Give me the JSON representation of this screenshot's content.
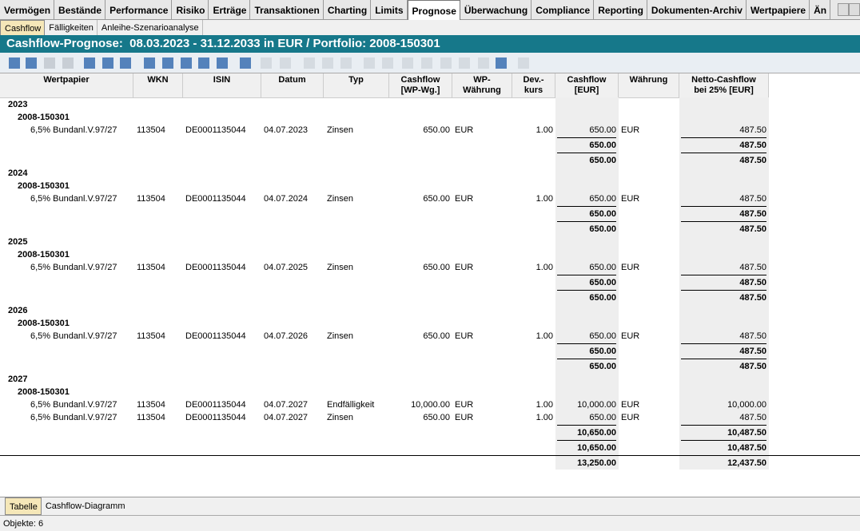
{
  "tabs": [
    "Vermögen",
    "Bestände",
    "Performance",
    "Risiko",
    "Erträge",
    "Transaktionen",
    "Charting",
    "Limits",
    "Prognose",
    "Überwachung",
    "Compliance",
    "Reporting",
    "Dokumenten-Archiv",
    "Wertpapiere",
    "Än"
  ],
  "subtabs": [
    "Cashflow",
    "Fälligkeiten",
    "Anleihe-Szenarioanalyse"
  ],
  "title": "Cashflow-Prognose:  08.03.2023 - 31.12.2033 in EUR / Portfolio: 2008-150301",
  "columns": [
    [
      "Wertpapier"
    ],
    [
      "WKN"
    ],
    [
      "ISIN"
    ],
    [
      "Datum"
    ],
    [
      "Typ"
    ],
    [
      "Cashflow",
      "[WP-Wg.]"
    ],
    [
      "WP-",
      "Währung"
    ],
    [
      "Dev.-",
      "kurs"
    ],
    [
      "Cashflow",
      "[EUR]"
    ],
    [
      "Währung"
    ],
    [
      "Netto-Cashflow",
      "bei 25% [EUR]"
    ]
  ],
  "years": [
    {
      "year": "2023",
      "portfolio": "2008-150301",
      "rows": [
        [
          "6,5% Bundanl.V.97/27",
          "113504",
          "DE0001135044",
          "04.07.2023",
          "Zinsen",
          "650.00",
          "EUR",
          "1.00",
          "650.00",
          "EUR",
          "487.50"
        ]
      ],
      "subtotal": [
        "650.00",
        "487.50"
      ],
      "total": [
        "650.00",
        "487.50"
      ]
    },
    {
      "year": "2024",
      "portfolio": "2008-150301",
      "rows": [
        [
          "6,5% Bundanl.V.97/27",
          "113504",
          "DE0001135044",
          "04.07.2024",
          "Zinsen",
          "650.00",
          "EUR",
          "1.00",
          "650.00",
          "EUR",
          "487.50"
        ]
      ],
      "subtotal": [
        "650.00",
        "487.50"
      ],
      "total": [
        "650.00",
        "487.50"
      ]
    },
    {
      "year": "2025",
      "portfolio": "2008-150301",
      "rows": [
        [
          "6,5% Bundanl.V.97/27",
          "113504",
          "DE0001135044",
          "04.07.2025",
          "Zinsen",
          "650.00",
          "EUR",
          "1.00",
          "650.00",
          "EUR",
          "487.50"
        ]
      ],
      "subtotal": [
        "650.00",
        "487.50"
      ],
      "total": [
        "650.00",
        "487.50"
      ]
    },
    {
      "year": "2026",
      "portfolio": "2008-150301",
      "rows": [
        [
          "6,5% Bundanl.V.97/27",
          "113504",
          "DE0001135044",
          "04.07.2026",
          "Zinsen",
          "650.00",
          "EUR",
          "1.00",
          "650.00",
          "EUR",
          "487.50"
        ]
      ],
      "subtotal": [
        "650.00",
        "487.50"
      ],
      "total": [
        "650.00",
        "487.50"
      ]
    },
    {
      "year": "2027",
      "portfolio": "2008-150301",
      "rows": [
        [
          "6,5% Bundanl.V.97/27",
          "113504",
          "DE0001135044",
          "04.07.2027",
          "Endfälligkeit",
          "10,000.00",
          "EUR",
          "1.00",
          "10,000.00",
          "EUR",
          "10,000.00"
        ],
        [
          "6,5% Bundanl.V.97/27",
          "113504",
          "DE0001135044",
          "04.07.2027",
          "Zinsen",
          "650.00",
          "EUR",
          "1.00",
          "650.00",
          "EUR",
          "487.50"
        ]
      ],
      "subtotal": [
        "10,650.00",
        "10,487.50"
      ],
      "total": [
        "10,650.00",
        "10,487.50"
      ]
    }
  ],
  "grand_total": [
    "13,250.00",
    "12,437.50"
  ],
  "bottom_tabs": [
    "Tabelle",
    "Cashflow-Diagramm"
  ],
  "status": "Objekte: 6"
}
